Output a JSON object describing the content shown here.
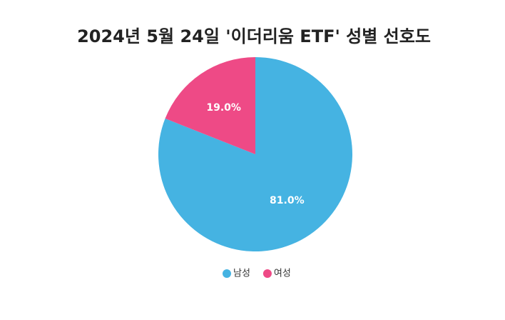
{
  "chart_data": {
    "type": "pie",
    "title": "2024년 5월 24일 '이더리움 ETF' 성별 선호도",
    "categories": [
      "남성",
      "여성"
    ],
    "values": [
      81.0,
      19.0
    ],
    "value_labels": [
      "81.0%",
      "19.0%"
    ],
    "colors": [
      "#45b3e2",
      "#ee4a86"
    ]
  }
}
